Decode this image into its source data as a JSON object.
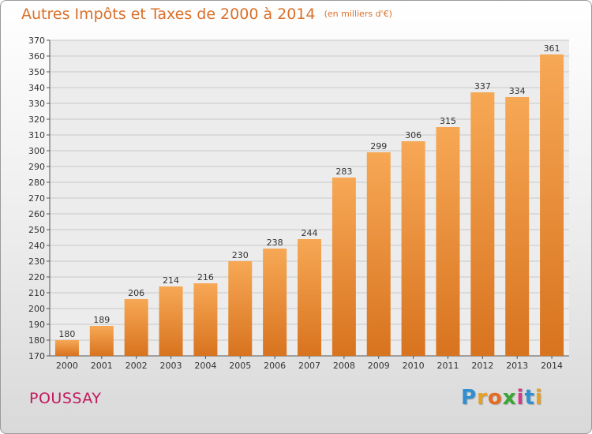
{
  "chart_data": {
    "type": "bar",
    "title": "Autres Impôts et Taxes de 2000 à 2014",
    "unit_label": "(en milliers d'€)",
    "categories": [
      "2000",
      "2001",
      "2002",
      "2003",
      "2004",
      "2005",
      "2006",
      "2007",
      "2008",
      "2009",
      "2010",
      "2011",
      "2012",
      "2013",
      "2014"
    ],
    "values": [
      180,
      189,
      206,
      214,
      216,
      230,
      238,
      244,
      283,
      299,
      306,
      315,
      337,
      334,
      361
    ],
    "value_labels": [
      "180",
      "189",
      "206",
      "214",
      "216",
      "230",
      "238",
      "244",
      "283",
      "299",
      "306",
      "315",
      "337",
      "334",
      "361"
    ],
    "ylim": [
      170,
      370
    ],
    "yticks": [
      "170",
      "180",
      "190",
      "200",
      "210",
      "220",
      "230",
      "240",
      "250",
      "260",
      "270",
      "280",
      "290",
      "300",
      "310",
      "320",
      "330",
      "340",
      "350",
      "360",
      "370"
    ],
    "grid": true,
    "legend": "none",
    "colors": {
      "bar_top": "#f7a855",
      "bar_bottom": "#d8731f",
      "title": "#d9702a",
      "place": "#c2185b"
    }
  },
  "footer": {
    "place_name": "POUSSAY",
    "brand": {
      "letters": [
        "P",
        "r",
        "o",
        "x",
        "i",
        "t",
        "i"
      ],
      "colors": [
        "#2f8fd0",
        "#e8a020",
        "#e86a20",
        "#3aa534",
        "#d03a8a",
        "#2f8fd0",
        "#e8a020"
      ]
    }
  }
}
